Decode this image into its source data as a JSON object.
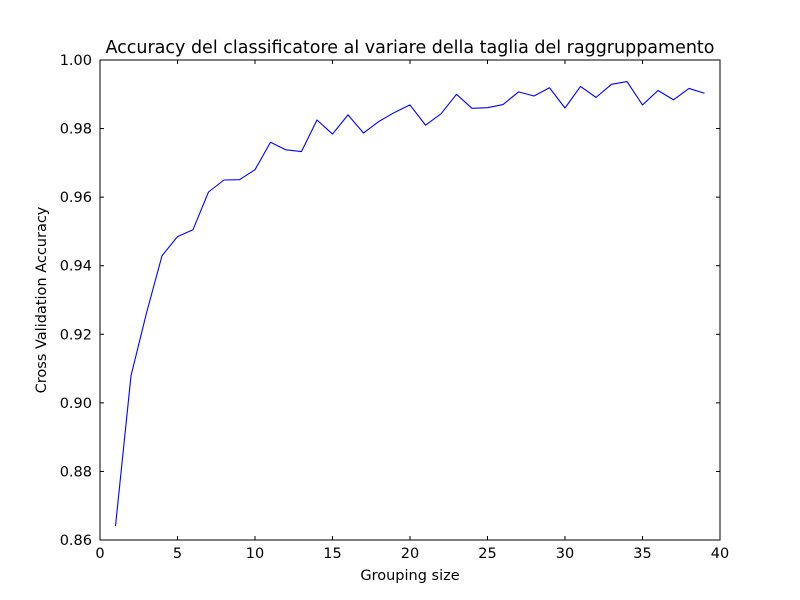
{
  "chart_data": {
    "type": "line",
    "title": "Accuracy del classificatore al variare della taglia del raggruppamento",
    "xlabel": "Grouping size",
    "ylabel": "Cross Validation Accuracy",
    "xlim": [
      0,
      40
    ],
    "ylim": [
      0.86,
      1.0
    ],
    "xticks": [
      0,
      5,
      10,
      15,
      20,
      25,
      30,
      35,
      40
    ],
    "xtick_labels": [
      "0",
      "5",
      "10",
      "15",
      "20",
      "25",
      "30",
      "35",
      "40"
    ],
    "yticks": [
      0.86,
      0.88,
      0.9,
      0.92,
      0.94,
      0.96,
      0.98,
      1.0
    ],
    "ytick_labels": [
      "0.86",
      "0.88",
      "0.90",
      "0.92",
      "0.94",
      "0.96",
      "0.98",
      "1.00"
    ],
    "grid": false,
    "legend": "none",
    "series": [
      {
        "color": "#0000ff",
        "x": [
          1,
          2,
          3,
          4,
          5,
          6,
          7,
          8,
          9,
          10,
          11,
          12,
          13,
          14,
          15,
          16,
          17,
          18,
          19,
          20,
          21,
          22,
          23,
          24,
          25,
          26,
          27,
          28,
          29,
          30,
          31,
          32,
          33,
          34,
          35,
          36,
          37,
          38,
          39
        ],
        "y": [
          0.8641,
          0.9079,
          0.9262,
          0.9429,
          0.9485,
          0.9505,
          0.9615,
          0.965,
          0.9651,
          0.968,
          0.976,
          0.9738,
          0.9733,
          0.9825,
          0.9784,
          0.984,
          0.9787,
          0.9821,
          0.9847,
          0.9869,
          0.981,
          0.9843,
          0.99,
          0.9859,
          0.9861,
          0.987,
          0.9907,
          0.9895,
          0.9919,
          0.986,
          0.9923,
          0.9891,
          0.9929,
          0.9937,
          0.9869,
          0.9911,
          0.9884,
          0.9917,
          0.9903
        ]
      }
    ]
  }
}
